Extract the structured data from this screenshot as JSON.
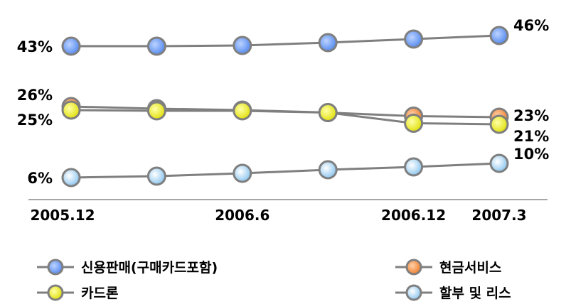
{
  "chart_data": {
    "type": "line",
    "x": [
      "2005.12",
      "2006.3",
      "2006.6",
      "2006.9",
      "2006.12",
      "2007.3"
    ],
    "x_tick_labels": [
      "2005.12",
      "2006.6",
      "2006.12",
      "2007.3"
    ],
    "x_tick_indices": [
      0,
      2,
      4,
      5
    ],
    "ylim": [
      0,
      50
    ],
    "grid": false,
    "legend_position": "bottom",
    "series": [
      {
        "name": "신용판매(구매카드포함)",
        "values": [
          43,
          43,
          43.2,
          44,
          45,
          46
        ],
        "start_label": "43%",
        "end_label": "46%",
        "color": "#5b8ff0"
      },
      {
        "name": "현금서비스",
        "values": [
          26,
          25.4,
          25,
          24.3,
          23.3,
          23
        ],
        "start_label": "26%",
        "end_label": "23%",
        "color": "#f08a3c"
      },
      {
        "name": "카드론",
        "values": [
          25,
          24.8,
          24.8,
          24.3,
          21.3,
          21
        ],
        "start_label": "25%",
        "end_label": "21%",
        "color": "#e6e600"
      },
      {
        "name": "할부 및 리스",
        "values": [
          6,
          6.4,
          7.2,
          8.2,
          9,
          10
        ],
        "start_label": "6%",
        "end_label": "10%",
        "color": "#a9d8f5"
      }
    ]
  }
}
